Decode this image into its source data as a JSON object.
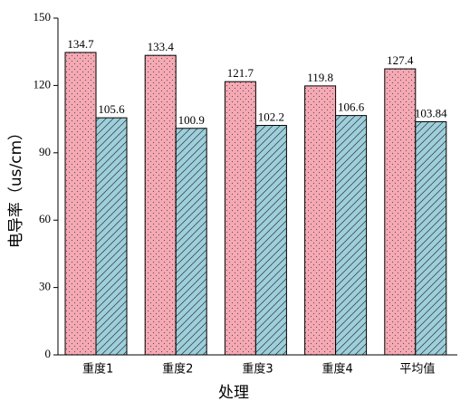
{
  "chart_data": {
    "type": "bar",
    "x_label": "处理",
    "y_label": "电导率（us/cm）",
    "categories": [
      "重度1",
      "重度2",
      "重度3",
      "重度4",
      "平均值"
    ],
    "series": [
      {
        "color": "#f6a9b4",
        "pattern": "dots",
        "values": [
          134.7,
          133.4,
          121.7,
          119.8,
          127.4
        ]
      },
      {
        "color": "#9dcfdc",
        "pattern": "hatch",
        "values": [
          105.6,
          100.9,
          102.2,
          106.6,
          103.84
        ]
      }
    ],
    "ylim": [
      0,
      150
    ],
    "yticks": [
      0,
      30,
      60,
      90,
      120,
      150
    ]
  }
}
